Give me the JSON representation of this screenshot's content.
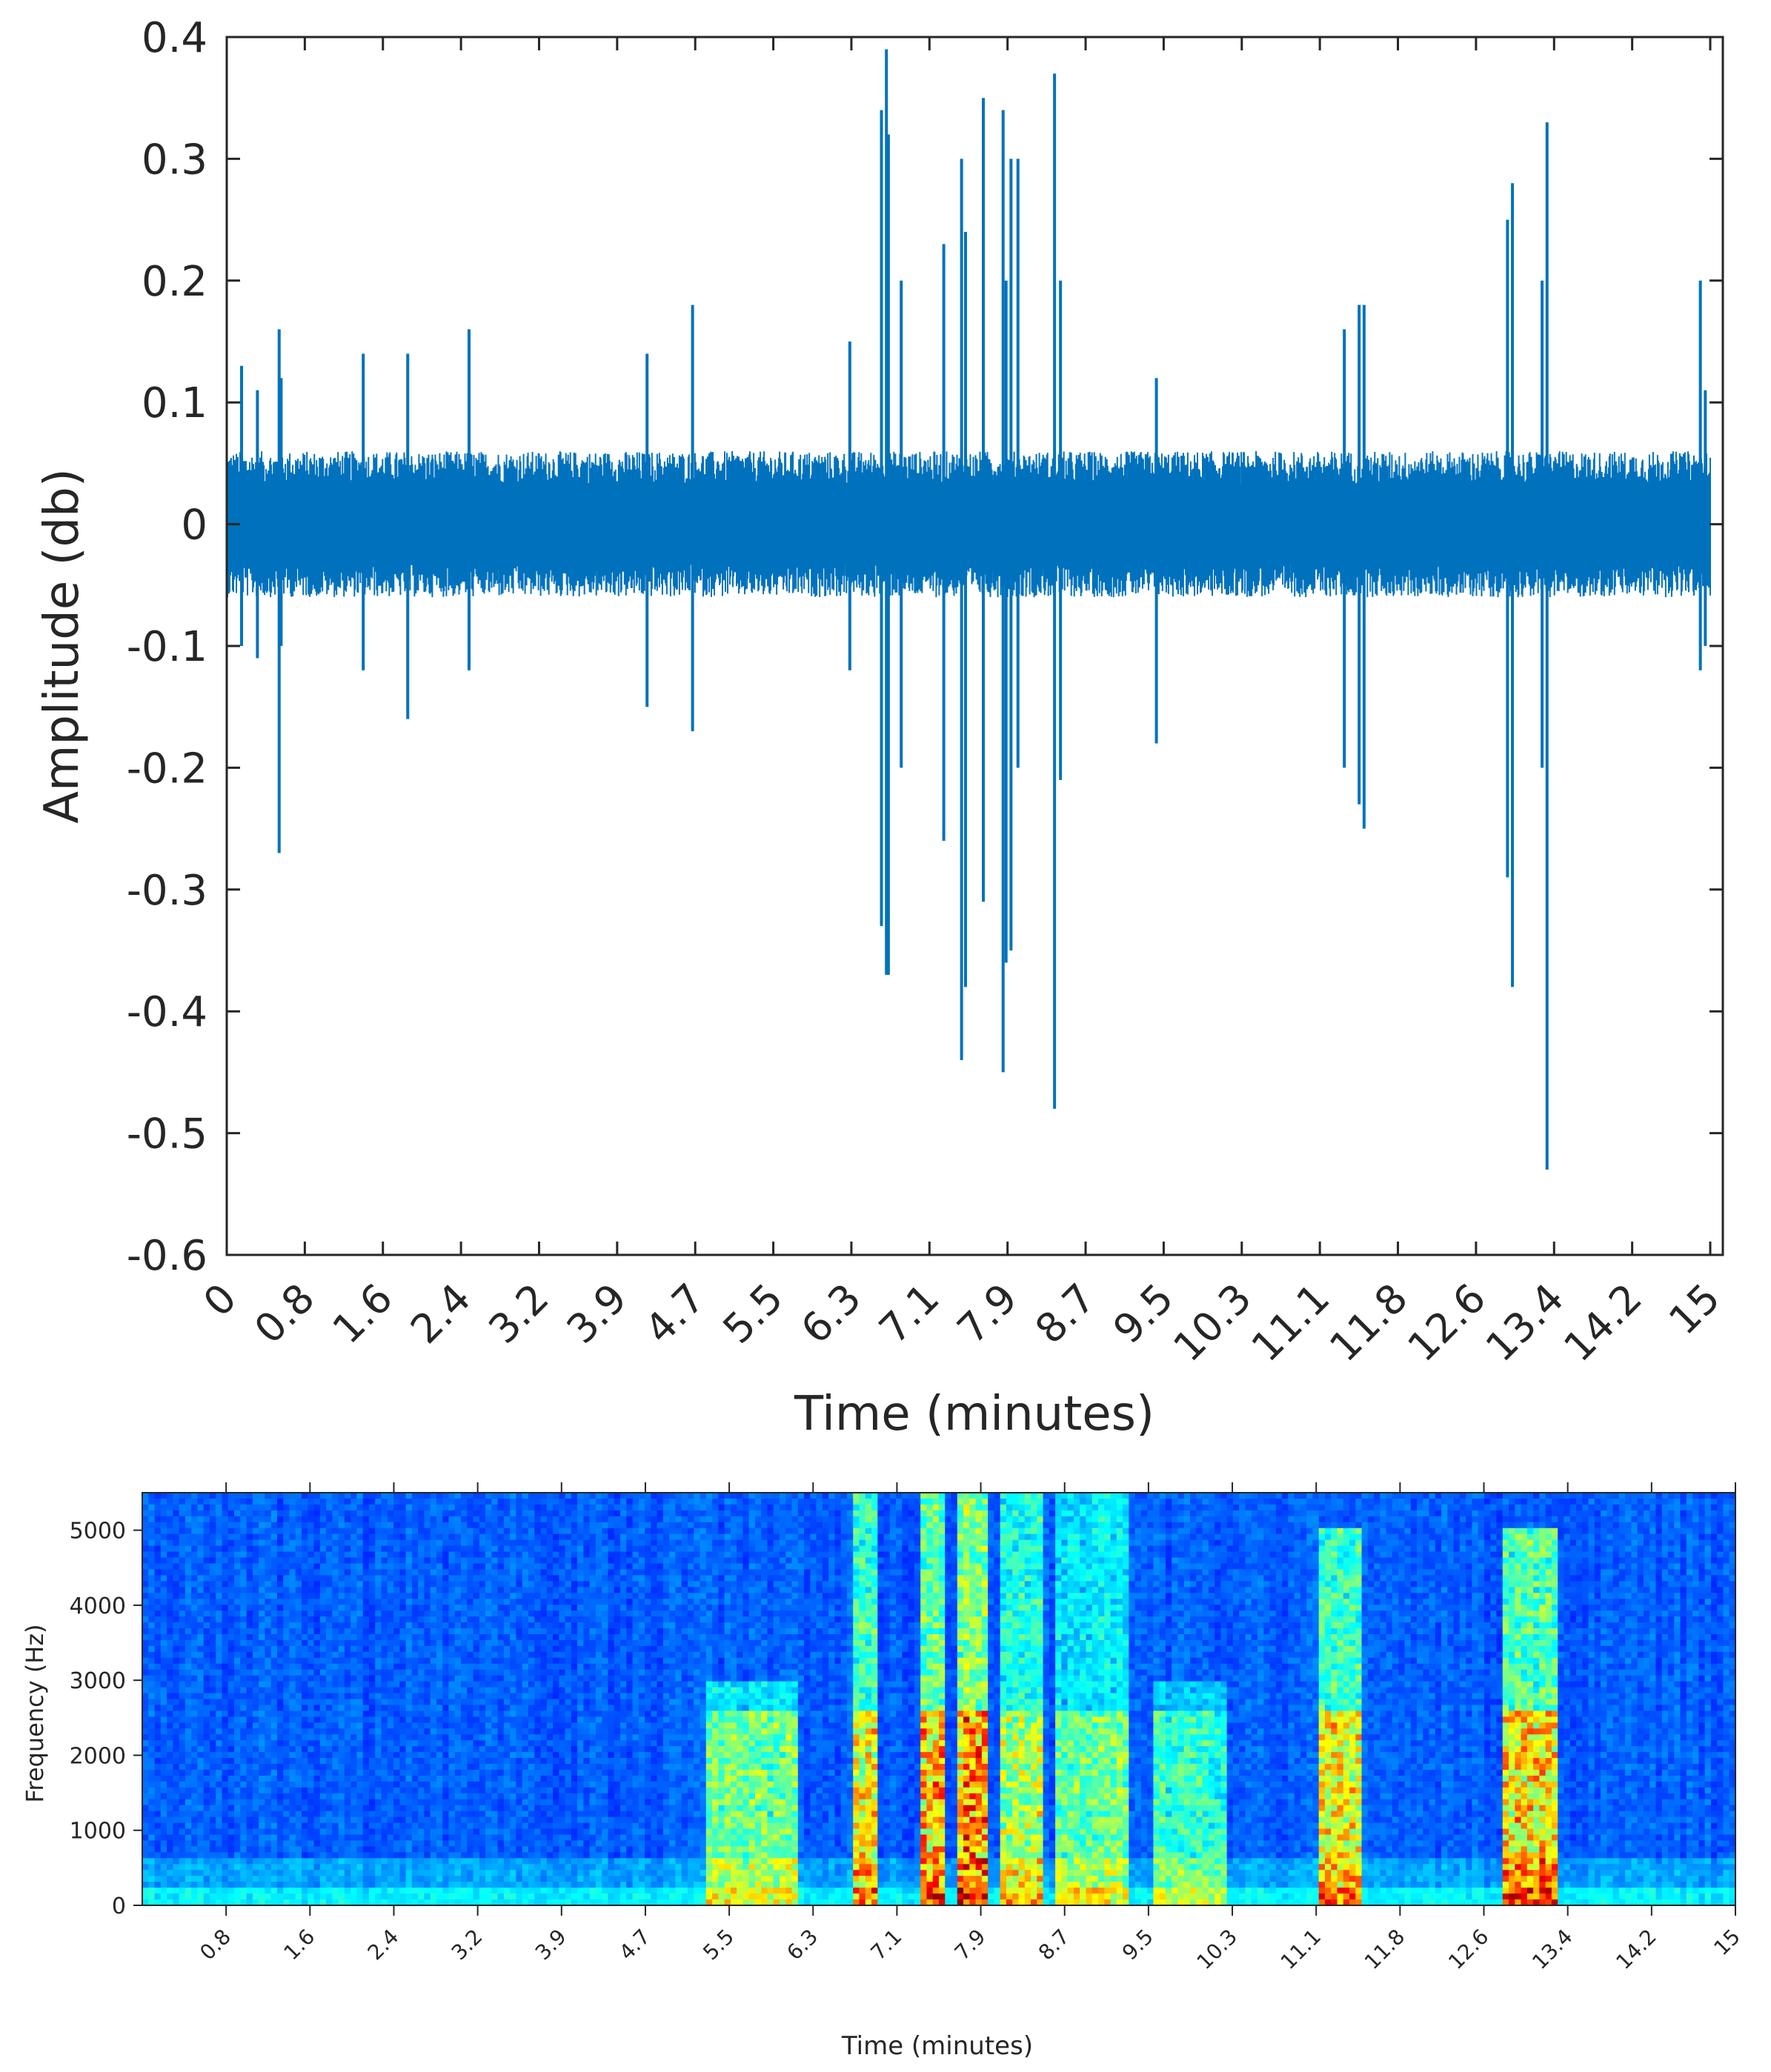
{
  "chart_data": [
    {
      "type": "line",
      "title": "",
      "xlabel": "Time (minutes)",
      "ylabel": "Amplitude (db)",
      "xlim": [
        0,
        15
      ],
      "ylim": [
        -0.6,
        0.4
      ],
      "x_tick_labels": [
        "0",
        "0.8",
        "1.6",
        "2.4",
        "3.2",
        "3.9",
        "4.7",
        "5.5",
        "6.3",
        "7.1",
        "7.9",
        "8.7",
        "9.5",
        "10.3",
        "11.1",
        "11.8",
        "12.6",
        "13.4",
        "14.2",
        "15"
      ],
      "y_ticks": [
        0.4,
        0.3,
        0.2,
        0.1,
        0,
        -0.1,
        -0.2,
        -0.3,
        -0.4,
        -0.5,
        -0.6
      ],
      "y_tick_labels": [
        "0.4",
        "0.3",
        "0.2",
        "0.1",
        "0",
        "-0.1",
        "-0.2",
        "-0.3",
        "-0.4",
        "-0.5",
        "-0.6"
      ],
      "line_color": "#0072BD",
      "grid": false,
      "baseline_noise_amplitude": 0.06,
      "series": [
        {
          "x": [
            0.15,
            0.31,
            0.53,
            0.55,
            1.38,
            1.83,
            2.45,
            4.25,
            4.71,
            6.3,
            6.62,
            6.67,
            6.69,
            6.82,
            7.25,
            7.43,
            7.47,
            7.65,
            7.85,
            7.88,
            7.93,
            8.0,
            8.37,
            8.43,
            9.4,
            11.3,
            11.45,
            11.5,
            12.95,
            13.0,
            13.3,
            13.35,
            14.9,
            14.95
          ],
          "max": [
            0.13,
            0.11,
            0.16,
            0.12,
            0.14,
            0.14,
            0.16,
            0.14,
            0.18,
            0.15,
            0.34,
            0.39,
            0.32,
            0.2,
            0.23,
            0.3,
            0.24,
            0.35,
            0.34,
            0.2,
            0.3,
            0.3,
            0.37,
            0.2,
            0.12,
            0.16,
            0.18,
            0.18,
            0.25,
            0.28,
            0.2,
            0.33,
            0.2,
            0.11
          ],
          "min": [
            -0.1,
            -0.11,
            -0.27,
            -0.1,
            -0.12,
            -0.16,
            -0.12,
            -0.15,
            -0.17,
            -0.12,
            -0.33,
            -0.37,
            -0.37,
            -0.2,
            -0.26,
            -0.44,
            -0.38,
            -0.31,
            -0.45,
            -0.36,
            -0.35,
            -0.2,
            -0.48,
            -0.21,
            -0.18,
            -0.2,
            -0.23,
            -0.25,
            -0.29,
            -0.38,
            -0.2,
            -0.53,
            -0.12,
            -0.1
          ]
        }
      ]
    },
    {
      "type": "heatmap",
      "title": "",
      "xlabel": "Time (minutes)",
      "ylabel": "Frequency (Hz)",
      "xlim": [
        0,
        15
      ],
      "ylim": [
        0,
        5500
      ],
      "colormap": "jet",
      "x_tick_labels": [
        "0.8",
        "1.6",
        "2.4",
        "3.2",
        "3.9",
        "4.7",
        "5.5",
        "6.3",
        "7.1",
        "7.9",
        "8.7",
        "9.5",
        "10.3",
        "11.1",
        "11.8",
        "12.6",
        "13.4",
        "14.2",
        "15"
      ],
      "y_ticks": [
        0,
        1000,
        2000,
        3000,
        4000,
        5000
      ],
      "y_tick_labels": [
        "0",
        "1000",
        "2000",
        "3000",
        "4000",
        "5000"
      ],
      "events": [
        {
          "x": [
            5.3,
            6.2
          ],
          "freq": [
            0,
            3000
          ],
          "intensity": 0.45
        },
        {
          "x": [
            6.7,
            6.9
          ],
          "freq": [
            0,
            5500
          ],
          "intensity": 0.7
        },
        {
          "x": [
            7.35,
            7.55
          ],
          "freq": [
            0,
            5500
          ],
          "intensity": 0.8
        },
        {
          "x": [
            7.65,
            7.95
          ],
          "freq": [
            0,
            5500
          ],
          "intensity": 0.9
        },
        {
          "x": [
            8.1,
            8.5
          ],
          "freq": [
            0,
            5500
          ],
          "intensity": 0.6
        },
        {
          "x": [
            8.6,
            9.3
          ],
          "freq": [
            0,
            5500
          ],
          "intensity": 0.45
        },
        {
          "x": [
            9.5,
            10.2
          ],
          "freq": [
            0,
            3000
          ],
          "intensity": 0.35
        },
        {
          "x": [
            11.1,
            11.5
          ],
          "freq": [
            0,
            5000
          ],
          "intensity": 0.7
        },
        {
          "x": [
            12.8,
            13.3
          ],
          "freq": [
            0,
            5000
          ],
          "intensity": 0.75
        }
      ]
    }
  ]
}
